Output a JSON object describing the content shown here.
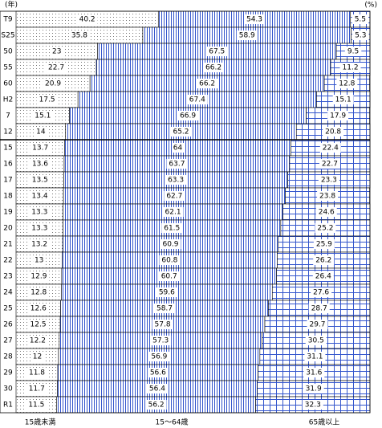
{
  "chart_data": {
    "type": "stacked-bar-100",
    "y_unit_label": "(年)",
    "x_unit_label": "(%)",
    "categories": [
      "T9",
      "S25",
      "50",
      "55",
      "60",
      "H2",
      "7",
      "12",
      "15",
      "16",
      "17",
      "18",
      "19",
      "20",
      "21",
      "22",
      "23",
      "24",
      "25",
      "26",
      "27",
      "28",
      "29",
      "30",
      "R1"
    ],
    "xlim": [
      0,
      100
    ],
    "series": [
      {
        "name": "15歳未満",
        "color": "#f2f2f2",
        "values": [
          40.2,
          35.8,
          23.0,
          22.7,
          20.9,
          17.5,
          15.1,
          14.0,
          13.7,
          13.6,
          13.5,
          13.4,
          13.3,
          13.3,
          13.2,
          13.0,
          12.9,
          12.8,
          12.6,
          12.5,
          12.2,
          12.0,
          11.8,
          11.7,
          11.5
        ]
      },
      {
        "name": "15～64歳",
        "color": "#3355cc",
        "values": [
          54.3,
          58.9,
          67.5,
          66.2,
          66.2,
          67.4,
          66.9,
          65.2,
          64.0,
          63.7,
          63.3,
          62.7,
          62.1,
          61.5,
          60.9,
          60.8,
          60.7,
          59.6,
          58.7,
          57.8,
          57.3,
          56.9,
          56.6,
          56.4,
          56.2
        ]
      },
      {
        "name": "65歳以上",
        "color": "#3355cc",
        "values": [
          5.5,
          5.3,
          9.5,
          11.2,
          12.8,
          15.1,
          17.9,
          20.8,
          22.4,
          22.7,
          23.3,
          23.8,
          24.6,
          25.2,
          25.9,
          26.2,
          26.4,
          27.6,
          28.7,
          29.7,
          30.5,
          31.1,
          31.6,
          31.9,
          32.3
        ]
      }
    ]
  }
}
